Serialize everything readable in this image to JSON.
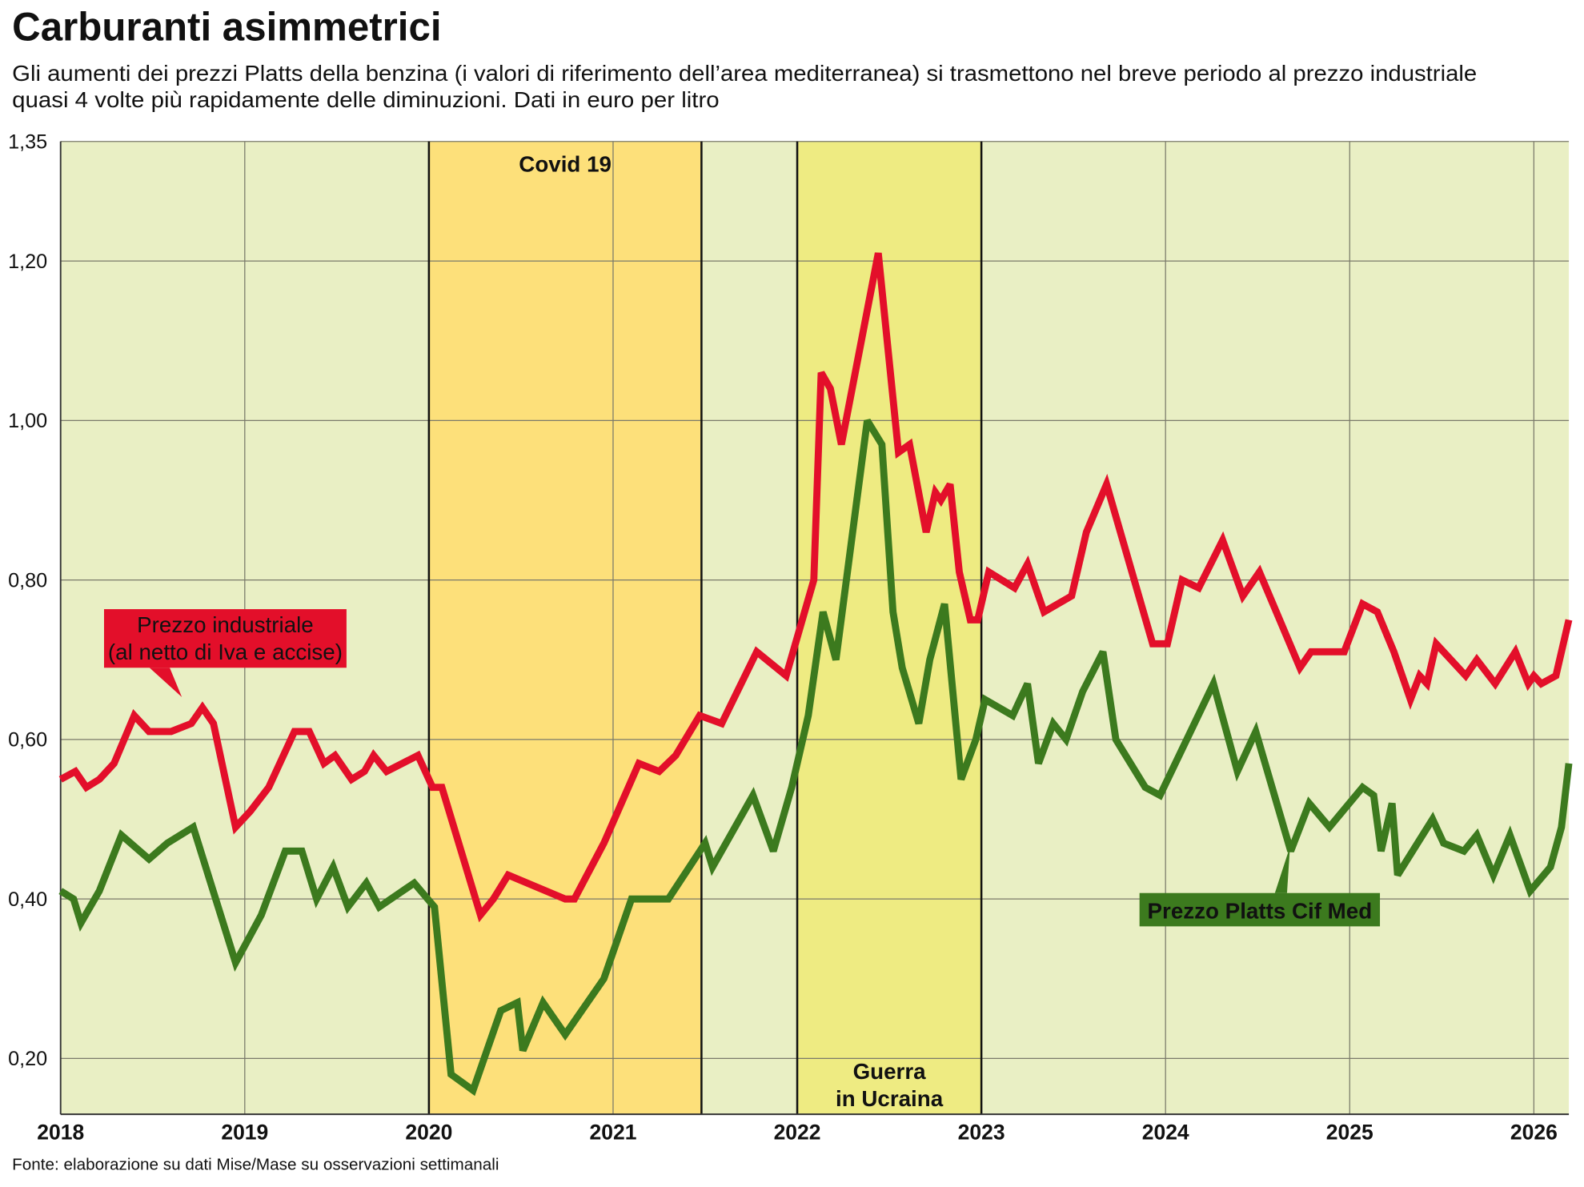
{
  "chart_data": {
    "type": "line",
    "title": "Carburanti asimmetrici",
    "subtitle": [
      "Gli aumenti dei prezzi Platts della benzina (i valori di riferimento dell’area mediterranea) si trasmettono nel breve periodo al prezzo industriale",
      "quasi 4 volte più rapidamente delle diminuzioni. Dati in euro per litro"
    ],
    "source": "Fonte: elaborazione su dati Mise/Mase su osservazioni settimanali",
    "xlim": [
      2018,
      2026.19
    ],
    "xticks": [
      2018,
      2019,
      2020,
      2021,
      2022,
      2023,
      2024,
      2025,
      2026
    ],
    "ylim": [
      0.13,
      1.35
    ],
    "yticks": [
      {
        "value": 0.2,
        "label": "0,20"
      },
      {
        "value": 0.4,
        "label": "0,40"
      },
      {
        "value": 0.6,
        "label": "0,60"
      },
      {
        "value": 0.8,
        "label": "0,80"
      },
      {
        "value": 1.0,
        "label": "1,00"
      },
      {
        "value": 1.2,
        "label": "1,20"
      },
      {
        "value": 1.35,
        "label": "1,35"
      }
    ],
    "grid": true,
    "background": "#e9efc4",
    "bands": [
      {
        "lines": [
          "Covid 19"
        ],
        "range": [
          2020,
          2021.48
        ],
        "color": "#fde07a",
        "label_position": "top"
      },
      {
        "lines": [
          "Guerra",
          "in Ucraina"
        ],
        "range": [
          2022,
          2023
        ],
        "color": "#eeeb82",
        "label_position": "bottom"
      }
    ],
    "series": [
      {
        "name": "Prezzo industriale",
        "name_note": "(al netto di Iva e accise)",
        "color": "#e30f2a",
        "x": [
          2018.0,
          2018.08,
          2018.14,
          2018.21,
          2018.29,
          2018.4,
          2018.48,
          2018.6,
          2018.71,
          2018.77,
          2018.83,
          2018.95,
          2019.03,
          2019.13,
          2019.27,
          2019.35,
          2019.43,
          2019.49,
          2019.58,
          2019.65,
          2019.7,
          2019.77,
          2019.94,
          2020.02,
          2020.07,
          2020.28,
          2020.35,
          2020.43,
          2020.74,
          2020.79,
          2020.95,
          2021.14,
          2021.25,
          2021.34,
          2021.47,
          2021.59,
          2021.78,
          2021.94,
          2022.09,
          2022.13,
          2022.18,
          2022.24,
          2022.44,
          2022.55,
          2022.61,
          2022.7,
          2022.75,
          2022.78,
          2022.83,
          2022.88,
          2022.94,
          2022.98,
          2023.04,
          2023.18,
          2023.25,
          2023.34,
          2023.49,
          2023.57,
          2023.68,
          2023.93,
          2024.01,
          2024.09,
          2024.18,
          2024.31,
          2024.42,
          2024.51,
          2024.73,
          2024.79,
          2024.97,
          2025.07,
          2025.15,
          2025.24,
          2025.33,
          2025.38,
          2025.42,
          2025.47,
          2025.63,
          2025.69,
          2025.79,
          2025.9,
          2025.97,
          2026.0,
          2026.04,
          2026.12,
          2026.19
        ],
        "values": [
          0.55,
          0.56,
          0.54,
          0.55,
          0.57,
          0.63,
          0.61,
          0.61,
          0.62,
          0.64,
          0.62,
          0.49,
          0.51,
          0.54,
          0.61,
          0.61,
          0.57,
          0.58,
          0.55,
          0.56,
          0.58,
          0.56,
          0.58,
          0.54,
          0.54,
          0.38,
          0.4,
          0.43,
          0.4,
          0.4,
          0.47,
          0.57,
          0.56,
          0.58,
          0.63,
          0.62,
          0.71,
          0.68,
          0.8,
          1.06,
          1.04,
          0.97,
          1.21,
          0.96,
          0.97,
          0.86,
          0.91,
          0.9,
          0.92,
          0.81,
          0.75,
          0.75,
          0.81,
          0.79,
          0.82,
          0.76,
          0.78,
          0.86,
          0.92,
          0.72,
          0.72,
          0.8,
          0.79,
          0.85,
          0.78,
          0.81,
          0.69,
          0.71,
          0.71,
          0.77,
          0.76,
          0.71,
          0.65,
          0.68,
          0.67,
          0.72,
          0.68,
          0.7,
          0.67,
          0.71,
          0.67,
          0.68,
          0.67,
          0.68,
          0.75
        ]
      },
      {
        "name": "Prezzo Platts Cif Med",
        "color": "#3c7a1e",
        "x": [
          2018.0,
          2018.07,
          2018.11,
          2018.21,
          2018.33,
          2018.48,
          2018.58,
          2018.72,
          2018.95,
          2019.09,
          2019.22,
          2019.31,
          2019.39,
          2019.48,
          2019.56,
          2019.66,
          2019.73,
          2019.92,
          2020.03,
          2020.12,
          2020.24,
          2020.39,
          2020.48,
          2020.51,
          2020.62,
          2020.74,
          2020.95,
          2021.1,
          2021.3,
          2021.5,
          2021.54,
          2021.76,
          2021.87,
          2021.97,
          2022.06,
          2022.14,
          2022.21,
          2022.38,
          2022.46,
          2022.52,
          2022.57,
          2022.66,
          2022.72,
          2022.8,
          2022.89,
          2022.97,
          2023.02,
          2023.17,
          2023.25,
          2023.31,
          2023.39,
          2023.46,
          2023.55,
          2023.66,
          2023.73,
          2023.89,
          2023.97,
          2024.26,
          2024.39,
          2024.49,
          2024.68,
          2024.78,
          2024.89,
          2025.07,
          2025.13,
          2025.17,
          2025.23,
          2025.26,
          2025.45,
          2025.51,
          2025.62,
          2025.69,
          2025.78,
          2025.87,
          2025.98,
          2026.09,
          2026.15,
          2026.19
        ],
        "values": [
          0.41,
          0.4,
          0.37,
          0.41,
          0.48,
          0.45,
          0.47,
          0.49,
          0.32,
          0.38,
          0.46,
          0.46,
          0.4,
          0.44,
          0.39,
          0.42,
          0.39,
          0.42,
          0.39,
          0.18,
          0.16,
          0.26,
          0.27,
          0.21,
          0.27,
          0.23,
          0.3,
          0.4,
          0.4,
          0.47,
          0.44,
          0.53,
          0.46,
          0.54,
          0.63,
          0.76,
          0.7,
          1.0,
          0.97,
          0.76,
          0.69,
          0.62,
          0.7,
          0.77,
          0.55,
          0.6,
          0.65,
          0.63,
          0.67,
          0.57,
          0.62,
          0.6,
          0.66,
          0.71,
          0.6,
          0.54,
          0.53,
          0.67,
          0.56,
          0.61,
          0.46,
          0.52,
          0.49,
          0.54,
          0.53,
          0.46,
          0.52,
          0.43,
          0.5,
          0.47,
          0.46,
          0.48,
          0.43,
          0.48,
          0.41,
          0.44,
          0.49,
          0.57
        ]
      }
    ]
  }
}
